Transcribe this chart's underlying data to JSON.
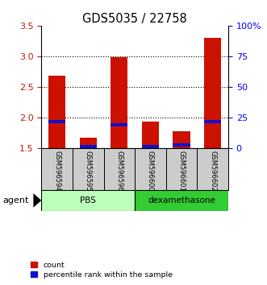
{
  "title": "GDS5035 / 22758",
  "samples": [
    "GSM596594",
    "GSM596595",
    "GSM596596",
    "GSM596600",
    "GSM596601",
    "GSM596602"
  ],
  "red_values": [
    2.68,
    1.67,
    2.98,
    1.93,
    1.78,
    3.3
  ],
  "blue_values": [
    1.93,
    1.52,
    1.88,
    1.52,
    1.55,
    1.93
  ],
  "y_min": 1.5,
  "y_max": 3.5,
  "y_ticks_left": [
    1.5,
    2.0,
    2.5,
    3.0,
    3.5
  ],
  "y_ticks_right": [
    0,
    25,
    50,
    75,
    100
  ],
  "right_y_labels": [
    "0",
    "25",
    "50",
    "75",
    "100%"
  ],
  "groups": [
    {
      "label": "PBS",
      "start": 0,
      "end": 3,
      "color": "#bbffbb"
    },
    {
      "label": "dexamethasone",
      "start": 3,
      "end": 6,
      "color": "#33cc33"
    }
  ],
  "agent_label": "agent",
  "red_color": "#cc1100",
  "blue_color": "#1111cc",
  "sample_box_color": "#cccccc",
  "legend_items": [
    "count",
    "percentile rank within the sample"
  ],
  "title_fontsize": 10.5
}
